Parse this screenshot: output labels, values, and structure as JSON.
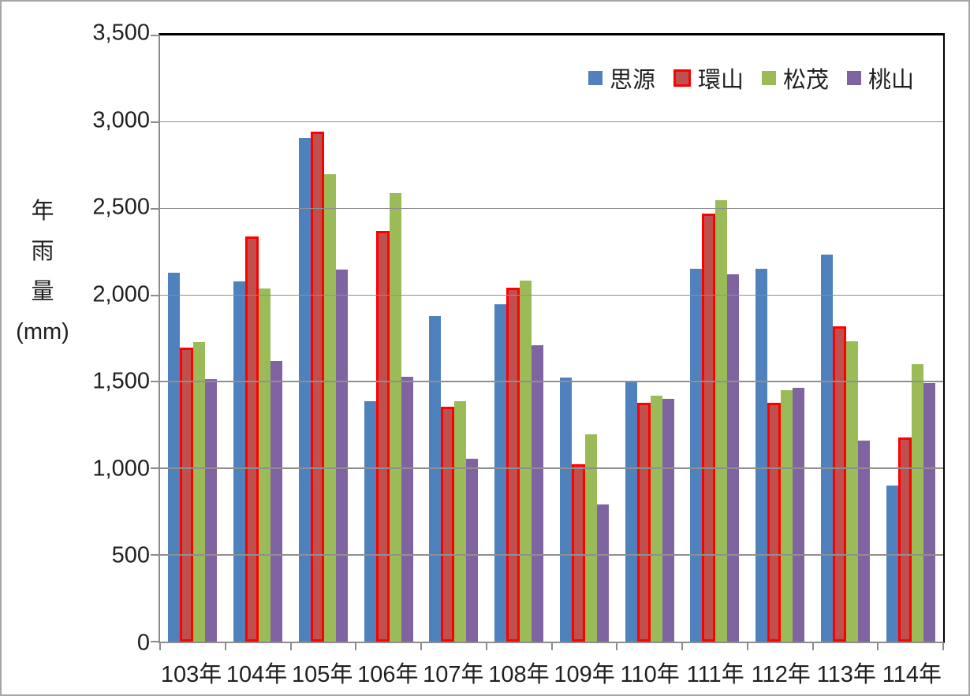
{
  "chart_data": {
    "type": "bar",
    "title": "",
    "ylabel_lines": [
      "年",
      "雨",
      "量",
      "(mm)"
    ],
    "ylabel": "年雨量(mm)",
    "xlabel": "",
    "categories": [
      "103年",
      "104年",
      "105年",
      "106年",
      "107年",
      "108年",
      "109年",
      "110年",
      "111年",
      "112年",
      "113年",
      "114年"
    ],
    "series": [
      {
        "name": "思源",
        "color": "#4f81bd",
        "values": [
          2130,
          2080,
          2910,
          1390,
          1880,
          1950,
          1525,
          1500,
          2155,
          2155,
          2235,
          900
        ]
      },
      {
        "name": "環山",
        "color": "#c0504d",
        "border_color": "#ff0000",
        "values": [
          1700,
          2340,
          2945,
          2370,
          1355,
          2045,
          1025,
          1380,
          2470,
          1380,
          1820,
          1180
        ]
      },
      {
        "name": "松茂",
        "color": "#9bbb59",
        "values": [
          1730,
          2040,
          2700,
          2590,
          1390,
          2085,
          1195,
          1420,
          2550,
          1450,
          1735,
          1600
        ]
      },
      {
        "name": "桃山",
        "color": "#8064a2",
        "values": [
          1515,
          1620,
          2150,
          1530,
          1055,
          1710,
          790,
          1400,
          2120,
          1465,
          1160,
          1495
        ]
      }
    ],
    "ylim": [
      0,
      3500
    ],
    "ytick_step": 500,
    "yticks": [
      "3,500",
      "3,000",
      "2,500",
      "2,000",
      "1,500",
      "1,000",
      "500",
      "0"
    ],
    "grid": true,
    "legend_position": "top-right",
    "colors": {
      "gridline": "#8f8f8f",
      "axis_line": "#8c8c8c",
      "plot_border": "#000000",
      "text": "#1f1f1f"
    }
  }
}
